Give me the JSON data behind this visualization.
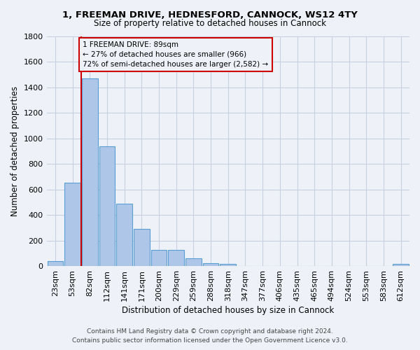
{
  "title_line1": "1, FREEMAN DRIVE, HEDNESFORD, CANNOCK, WS12 4TY",
  "title_line2": "Size of property relative to detached houses in Cannock",
  "xlabel": "Distribution of detached houses by size in Cannock",
  "ylabel": "Number of detached properties",
  "bin_labels": [
    "23sqm",
    "53sqm",
    "82sqm",
    "112sqm",
    "141sqm",
    "171sqm",
    "200sqm",
    "229sqm",
    "259sqm",
    "288sqm",
    "318sqm",
    "347sqm",
    "377sqm",
    "406sqm",
    "435sqm",
    "465sqm",
    "494sqm",
    "524sqm",
    "553sqm",
    "583sqm",
    "612sqm"
  ],
  "bar_values": [
    38,
    650,
    1470,
    935,
    490,
    290,
    125,
    125,
    60,
    22,
    18,
    0,
    0,
    0,
    0,
    0,
    0,
    0,
    0,
    0,
    16
  ],
  "bar_color": "#aec6e8",
  "bar_edgecolor": "#5a9fd4",
  "vline_x": 1.5,
  "vline_color": "#cc0000",
  "annotation_text": "1 FREEMAN DRIVE: 89sqm\n← 27% of detached houses are smaller (966)\n72% of semi-detached houses are larger (2,582) →",
  "annotation_box_color": "#cc0000",
  "ylim": [
    0,
    1800
  ],
  "yticks": [
    0,
    200,
    400,
    600,
    800,
    1000,
    1200,
    1400,
    1600,
    1800
  ],
  "footer_line1": "Contains HM Land Registry data © Crown copyright and database right 2024.",
  "footer_line2": "Contains public sector information licensed under the Open Government Licence v3.0.",
  "background_color": "#eef2f8",
  "grid_color": "#c8d0e0"
}
